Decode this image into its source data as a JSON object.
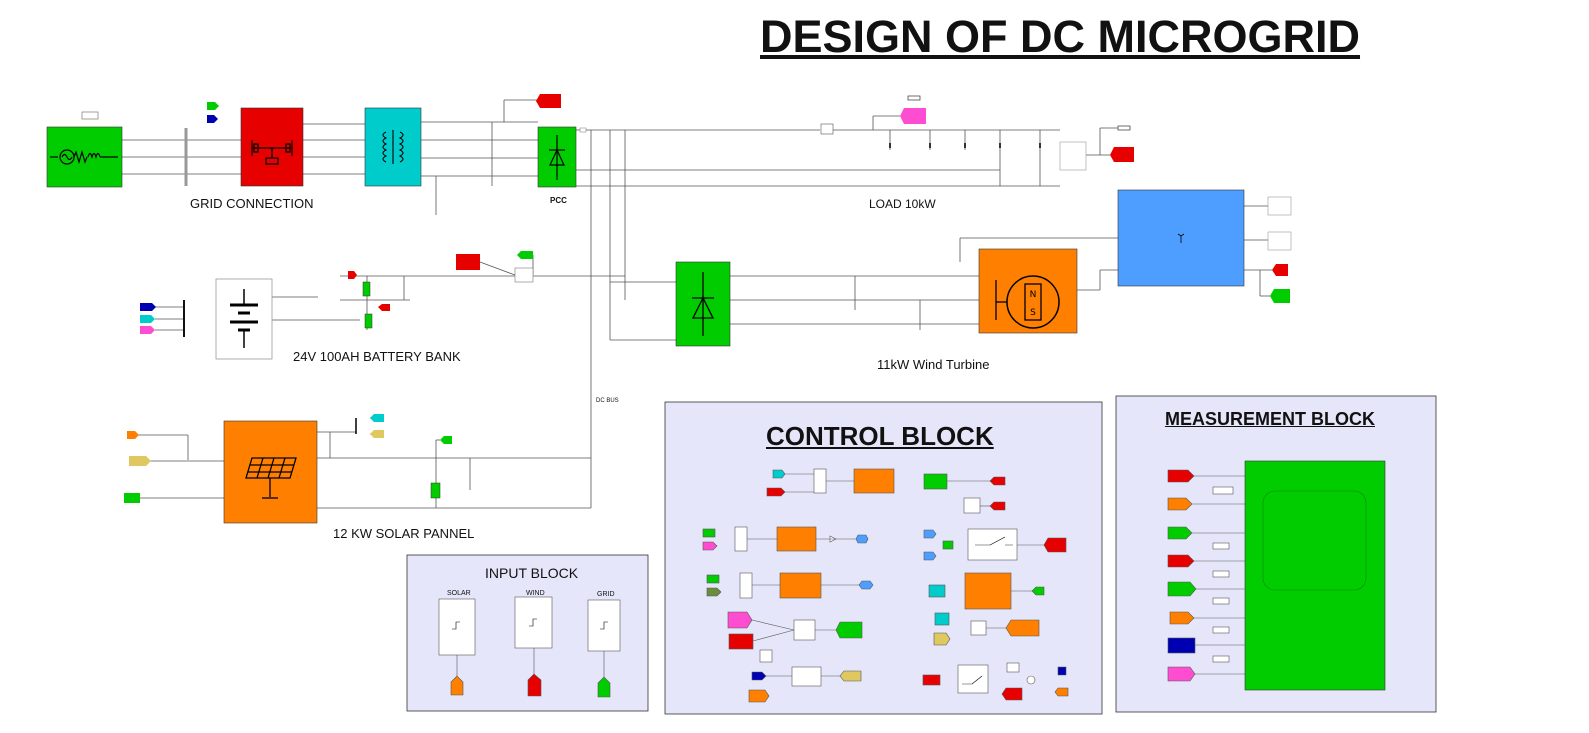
{
  "diagram": {
    "title": "DESIGN OF DC MICROGRID",
    "labels": {
      "grid_connection": "GRID CONNECTION",
      "pcc": "PCC",
      "load": "LOAD 10kW",
      "battery": "24V 100AH BATTERY BANK",
      "wind": "11kW Wind Turbine",
      "solar": "12 KW SOLAR PANNEL",
      "dc_bus": "DC BUS"
    },
    "subsystems": {
      "control_block": "CONTROL BLOCK",
      "measurement_block": "MEASUREMENT BLOCK",
      "input_block": "INPUT BLOCK",
      "input_solar": "SOLAR",
      "input_wind": "WIND",
      "input_grid": "GRID"
    }
  },
  "colors": {
    "green": "#00cc00",
    "red": "#e60000",
    "cyan": "#00cccc",
    "orange": "#ff8000",
    "blue": "#4d9eff",
    "magenta": "#ff4dd2",
    "navy": "#0000b3",
    "yellow": "#e0c860",
    "subsystem_bg": "#e6e6fa"
  },
  "icons": {
    "grid_source": "ac-source-icon",
    "breaker": "breaker-icon",
    "transformer": "transformer-icon",
    "rectifier": "diode-icon",
    "battery": "battery-icon",
    "solar": "solar-panel-icon",
    "wind_generator": "pmsg-icon",
    "wind_turbine": "wind-turbine-icon"
  }
}
